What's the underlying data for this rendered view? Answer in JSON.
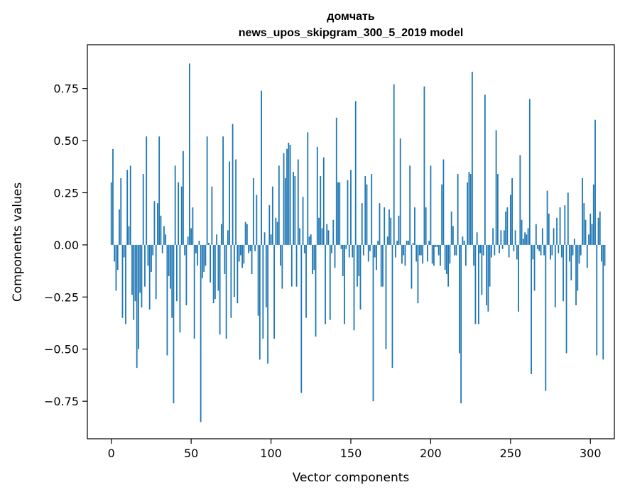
{
  "chart_data": {
    "type": "bar",
    "title": "домчать",
    "subtitle": "news_upos_skipgram_300_5_2019 model",
    "xlabel": "Vector components",
    "ylabel": "Components values",
    "xlim": [
      -15,
      315
    ],
    "ylim": [
      -0.93,
      0.96
    ],
    "xticks": [
      0,
      50,
      100,
      150,
      200,
      250,
      300
    ],
    "yticks": [
      -0.75,
      -0.5,
      -0.25,
      0.0,
      0.25,
      0.5,
      0.75
    ],
    "ytick_labels": [
      "−0.75",
      "−0.50",
      "−0.25",
      "0.00",
      "0.25",
      "0.50",
      "0.75"
    ],
    "grid": false,
    "bar_color": "#1f77b4",
    "values": [
      0.3,
      0.46,
      -0.08,
      -0.22,
      -0.12,
      0.17,
      0.32,
      -0.35,
      -0.06,
      -0.38,
      0.36,
      0.09,
      0.38,
      -0.24,
      -0.36,
      -0.27,
      -0.59,
      -0.5,
      -0.23,
      -0.3,
      0.34,
      -0.2,
      0.52,
      -0.1,
      -0.31,
      -0.13,
      -0.05,
      0.21,
      -0.26,
      0.2,
      0.52,
      0.14,
      -0.04,
      0.09,
      0.05,
      -0.53,
      -0.15,
      -0.21,
      -0.35,
      -0.76,
      0.38,
      -0.27,
      0.3,
      -0.42,
      0.28,
      0.45,
      -0.05,
      -0.29,
      0.04,
      0.87,
      0.08,
      0.18,
      -0.45,
      -0.04,
      -0.1,
      0.02,
      -0.85,
      -0.16,
      -0.13,
      -0.1,
      0.52,
      0.01,
      -0.18,
      0.28,
      -0.28,
      -0.26,
      0.05,
      -0.22,
      -0.43,
      0.1,
      0.52,
      -0.14,
      -0.45,
      0.07,
      0.4,
      -0.35,
      0.58,
      -0.25,
      0.41,
      -0.28,
      -0.08,
      -0.05,
      -0.11,
      -0.09,
      0.11,
      0.1,
      -0.04,
      -0.03,
      -0.14,
      0.32,
      -0.03,
      0.24,
      -0.34,
      -0.55,
      0.74,
      -0.45,
      0.06,
      -0.3,
      -0.57,
      0.19,
      0.05,
      0.28,
      -0.45,
      0.13,
      0.11,
      0.38,
      -0.1,
      -0.21,
      0.44,
      0.32,
      0.46,
      0.49,
      0.48,
      -0.2,
      0.35,
      0.33,
      -0.2,
      0.41,
      0.08,
      -0.71,
      0.23,
      -0.04,
      -0.35,
      0.54,
      0.04,
      0.05,
      -0.14,
      -0.12,
      -0.44,
      0.47,
      0.13,
      0.33,
      0.08,
      0.42,
      -0.38,
      0.1,
      0.07,
      -0.36,
      -0.04,
      0.12,
      -0.11,
      0.61,
      0.3,
      0.3,
      -0.02,
      -0.15,
      -0.38,
      -0.02,
      0.31,
      -0.06,
      0.36,
      -0.06,
      -0.41,
      0.69,
      -0.2,
      -0.15,
      -0.31,
      0.2,
      -0.05,
      0.33,
      0.29,
      -0.08,
      -0.03,
      0.34,
      -0.75,
      -0.06,
      -0.12,
      0.02,
      0.2,
      -0.2,
      -0.2,
      0.18,
      -0.5,
      0.04,
      0.17,
      0.13,
      -0.59,
      0.77,
      -0.06,
      0.02,
      0.14,
      0.51,
      -0.09,
      -0.05,
      -0.1,
      0.02,
      0.02,
      0.38,
      -0.21,
      0.01,
      0.18,
      -0.08,
      -0.28,
      -0.05,
      -0.05,
      -0.09,
      0.76,
      0.18,
      -0.08,
      0.02,
      0.38,
      -0.09,
      -0.1,
      -0.01,
      -0.01,
      -0.05,
      -0.1,
      0.29,
      0.41,
      -0.12,
      -0.14,
      -0.2,
      -0.09,
      0.16,
      0.09,
      -0.05,
      -0.05,
      0.34,
      -0.52,
      -0.76,
      0.04,
      0.02,
      -0.1,
      0.3,
      0.35,
      0.34,
      0.83,
      -0.1,
      -0.38,
      0.06,
      -0.38,
      -0.04,
      -0.24,
      -0.05,
      0.72,
      -0.29,
      -0.32,
      -0.2,
      -0.06,
      0.08,
      -0.05,
      0.55,
      0.34,
      -0.04,
      0.07,
      -0.02,
      0.07,
      0.16,
      0.18,
      -0.06,
      0.24,
      0.32,
      -0.03,
      0.07,
      -0.07,
      -0.32,
      0.43,
      0.12,
      0.03,
      0.06,
      0.05,
      0.08,
      0.7,
      -0.62,
      -0.07,
      -0.22,
      0.1,
      -0.02,
      -0.03,
      -0.05,
      0.08,
      -0.05,
      -0.7,
      0.26,
      0.15,
      -0.07,
      -0.05,
      0.08,
      -0.3,
      0.13,
      -0.04,
      0.18,
      -0.06,
      -0.27,
      0.19,
      -0.52,
      0.25,
      -0.08,
      -0.17,
      -0.05,
      0.03,
      -0.29,
      -0.22,
      -0.09,
      -0.05,
      0.32,
      0.2,
      0.12,
      -0.11,
      0.05,
      0.15,
      0.1,
      0.29,
      0.6,
      -0.53,
      0.13,
      0.16,
      -0.08,
      -0.55,
      -0.1
    ]
  }
}
